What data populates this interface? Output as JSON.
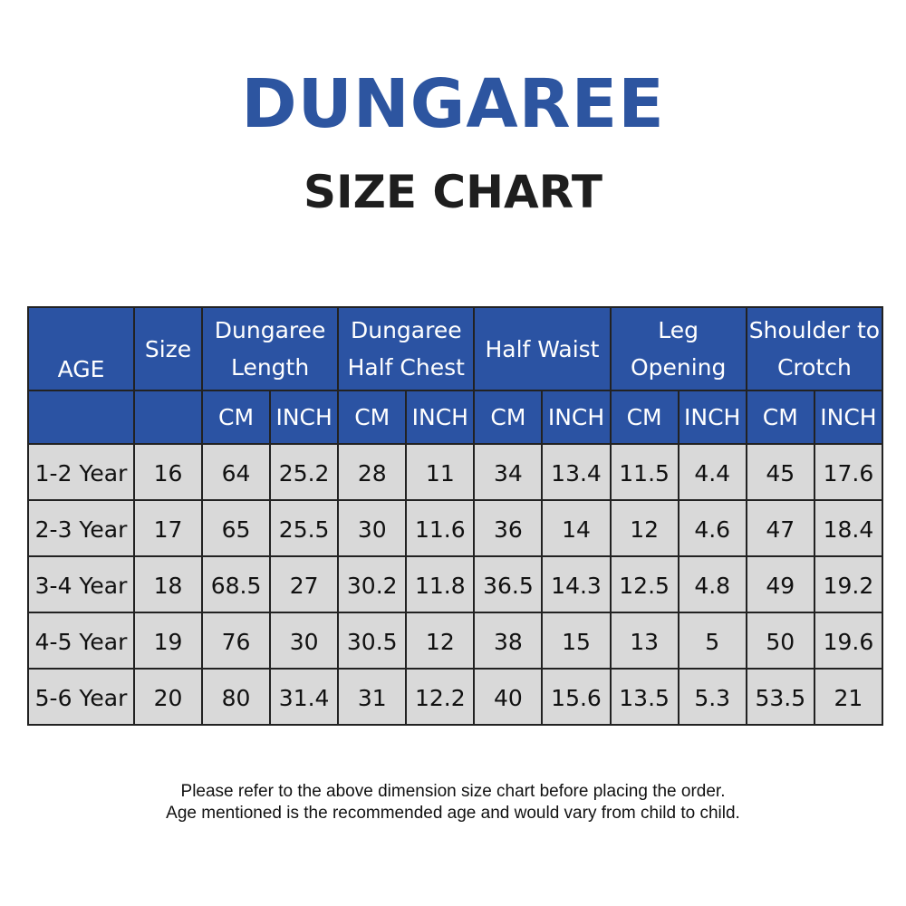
{
  "header": {
    "title": "DUNGAREE",
    "subtitle": "SIZE CHART"
  },
  "table": {
    "groups": [
      "AGE",
      "Size",
      "Dungaree Length",
      "Dungaree Half Chest",
      "Half Waist",
      "Leg Opening",
      "Shoulder to Crotch"
    ],
    "units": [
      "CM",
      "INCH",
      "CM",
      "INCH",
      "CM",
      "INCH",
      "CM",
      "INCH",
      "CM",
      "INCH"
    ],
    "rows": [
      [
        "1-2 Year",
        16,
        64,
        25.2,
        28,
        11,
        34,
        13.4,
        11.5,
        4.4,
        45,
        17.6
      ],
      [
        "2-3 Year",
        17,
        65,
        25.5,
        30,
        11.6,
        36,
        14,
        12,
        4.6,
        47,
        18.4
      ],
      [
        "3-4 Year",
        18,
        68.5,
        27,
        30.2,
        11.8,
        36.5,
        14.3,
        12.5,
        4.8,
        49,
        19.2
      ],
      [
        "4-5 Year",
        19,
        76,
        30,
        30.5,
        12,
        38,
        15,
        13,
        5,
        50,
        19.6
      ],
      [
        "5-6 Year",
        20,
        80,
        31.4,
        31,
        12.2,
        40,
        15.6,
        13.5,
        5.3,
        53.5,
        21
      ]
    ]
  },
  "notes": [
    "Please refer to the above dimension size chart before placing the order.",
    "Age mentioned is the recommended age and would vary from child to child."
  ]
}
